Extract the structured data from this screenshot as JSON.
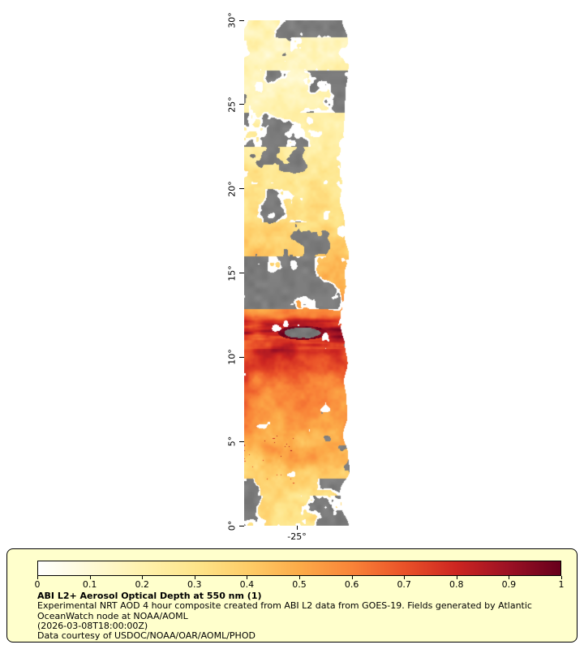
{
  "window": {
    "background": "#ffffff"
  },
  "map": {
    "lat_ticks": [
      {
        "label": "30°",
        "lat": 30
      },
      {
        "label": "25°",
        "lat": 25
      },
      {
        "label": "20°",
        "lat": 20
      },
      {
        "label": "15°",
        "lat": 15
      },
      {
        "label": "10°",
        "lat": 10
      },
      {
        "label": "5°",
        "lat": 5
      },
      {
        "label": "0°",
        "lat": 0
      }
    ],
    "lon_ticks": [
      {
        "label": "-25°",
        "frac": 0.5
      }
    ]
  },
  "legend": {
    "background": "#ffffcc",
    "border_color": "#000000"
  },
  "chart_data": {
    "type": "heatmap",
    "title": "ABI L2+ Aerosol Optical Depth at 550 nm (1)",
    "subtitle": "Experimental NRT AOD 4 hour composite created from ABI L2 data from GOES-19. Fields generated by Atlantic OceanWatch node at NOAA/AOML",
    "timestamp": "(2026-03-08T18:00:00Z)",
    "credit": "Data courtesy of USDOC/NOAA/OAR/AOML/PHOD",
    "y_axis": {
      "ticks": [
        0,
        5,
        10,
        15,
        20,
        25,
        30
      ],
      "range": [
        0,
        30
      ],
      "tick_suffix": "°"
    },
    "x_axis": {
      "ticks": [
        -25
      ],
      "tick_suffix": "°"
    },
    "grid": false,
    "legend_position": "bottom",
    "colorbar": {
      "min": 0,
      "max": 1,
      "tick_labels": [
        "0",
        "0.1",
        "0.2",
        "0.3",
        "0.4",
        "0.5",
        "0.6",
        "0.7",
        "0.8",
        "0.9",
        "1"
      ],
      "stops": [
        "#ffffff",
        "#fffad6",
        "#fff2ad",
        "#fee58b",
        "#fecd68",
        "#fcab49",
        "#f98438",
        "#ea5229",
        "#cd2621",
        "#9c1124",
        "#67001c"
      ]
    },
    "no_data_color": "#7d7d7d",
    "aod_profile": [
      [
        0,
        0.3
      ],
      [
        1.5,
        0.33
      ],
      [
        3,
        0.41
      ],
      [
        5,
        0.47
      ],
      [
        7,
        0.54
      ],
      [
        9,
        0.6
      ],
      [
        10.5,
        0.66
      ],
      [
        11.1,
        0.82
      ],
      [
        11.5,
        0.9
      ],
      [
        11.9,
        0.72
      ],
      [
        12.6,
        0.56
      ],
      [
        13.5,
        0.5
      ],
      [
        15,
        0.44
      ],
      [
        16.5,
        0.38
      ],
      [
        18,
        0.32
      ],
      [
        20,
        0.27
      ],
      [
        22,
        0.24
      ],
      [
        24,
        0.2
      ],
      [
        26,
        0.18
      ],
      [
        28,
        0.16
      ],
      [
        30,
        0.17
      ]
    ],
    "cloud_bands": [
      {
        "lat_min": 29,
        "lat_max": 30.01,
        "amount": 0.4,
        "side": "right"
      },
      {
        "lat_min": 27,
        "lat_max": 29,
        "amount": 0.22,
        "side": "right"
      },
      {
        "lat_min": 24.5,
        "lat_max": 27,
        "amount": 0.55,
        "side": "right"
      },
      {
        "lat_min": 22.5,
        "lat_max": 24.5,
        "amount": 0.3,
        "side": "any"
      },
      {
        "lat_min": 20,
        "lat_max": 22.5,
        "amount": 0.16,
        "side": "any"
      },
      {
        "lat_min": 18,
        "lat_max": 20,
        "amount": 0.3,
        "side": "any"
      },
      {
        "lat_min": 16,
        "lat_max": 18,
        "amount": 0.2,
        "side": "any"
      },
      {
        "lat_min": 14.8,
        "lat_max": 16,
        "amount": 0.35,
        "side": "left"
      },
      {
        "lat_min": 12.85,
        "lat_max": 14.8,
        "amount": 0.6,
        "side": "left"
      },
      {
        "lat_min": 11.8,
        "lat_max": 12.85,
        "amount": 0.22,
        "side": "any"
      },
      {
        "lat_min": 2.8,
        "lat_max": 11.8,
        "amount": 0.03,
        "side": "any"
      },
      {
        "lat_min": 1.8,
        "lat_max": 2.8,
        "amount": 0.3,
        "side": "any"
      },
      {
        "lat_min": 0,
        "lat_max": 1.8,
        "amount": 0.5,
        "side": "any"
      }
    ]
  }
}
